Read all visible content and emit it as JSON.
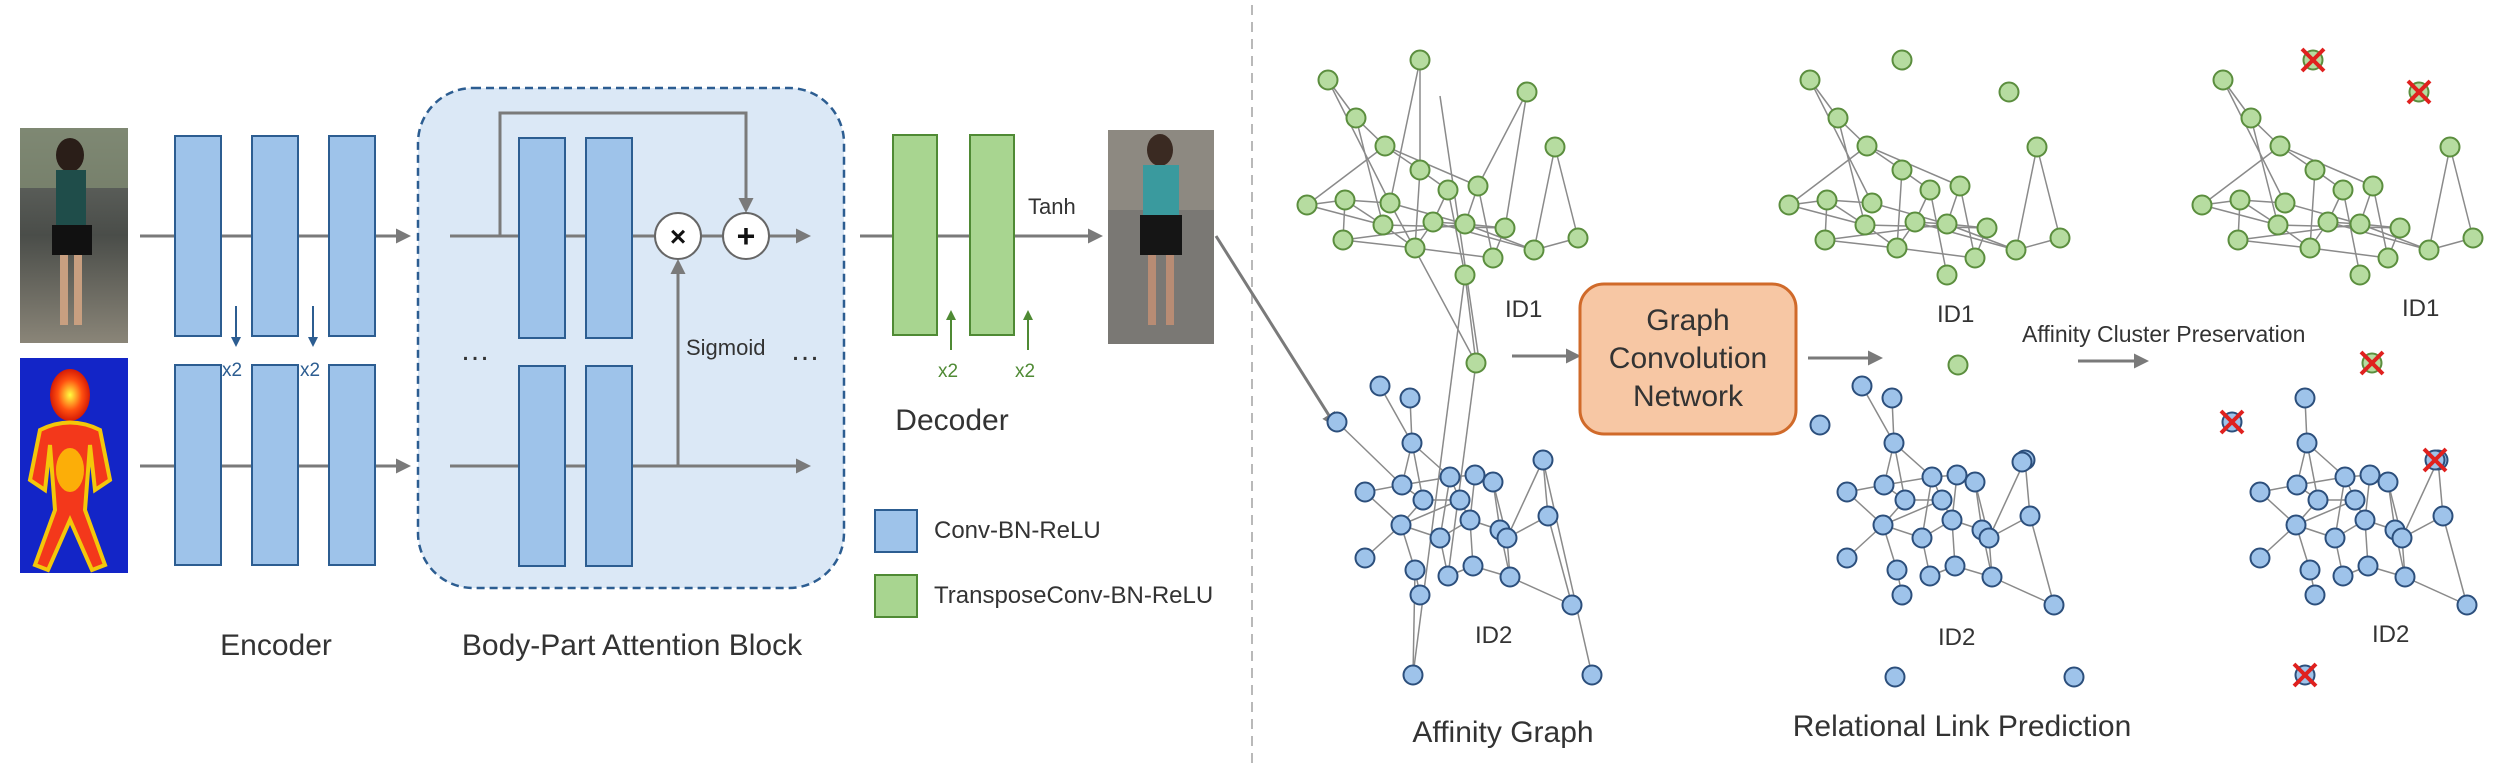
{
  "labels": {
    "encoder": "Encoder",
    "attention_block": "Body-Part Attention Block",
    "decoder": "Decoder",
    "sigmoid": "Sigmoid",
    "tanh": "Tanh",
    "x2": "x2",
    "times": "×",
    "plus": "+",
    "ellipsis": "…",
    "gcn": "Graph Convolution Network",
    "gcn_line1": "Graph",
    "gcn_line2": "Convolution",
    "gcn_line3": "Network",
    "affinity_graph": "Affinity Graph",
    "relational_link_prediction": "Relational Link Prediction",
    "affinity_cluster_preservation": "Affinity Cluster Preservation",
    "id1": "ID1",
    "id2": "ID2"
  },
  "legend": [
    {
      "label": "Conv-BN-ReLU",
      "color": "#9ec3ea"
    },
    {
      "label": "TransposeConv-BN-ReLU",
      "color": "#a8d590"
    }
  ],
  "colors": {
    "conv_block": "#9ec3ea",
    "conv_border": "#2c5d91",
    "transpose_block": "#a8d590",
    "transpose_border": "#4f8a34",
    "attention_bg": "#dbe8f6",
    "attention_border": "#2c5d91",
    "gcn_fill": "#f7c7a4",
    "gcn_border": "#d06a2a",
    "removed_marker": "#e0211f"
  },
  "images": {
    "person_photo": "pedestrian photo (input)",
    "heatmap": "body-part heatmap",
    "generated_photo": "generated pedestrian image"
  }
}
